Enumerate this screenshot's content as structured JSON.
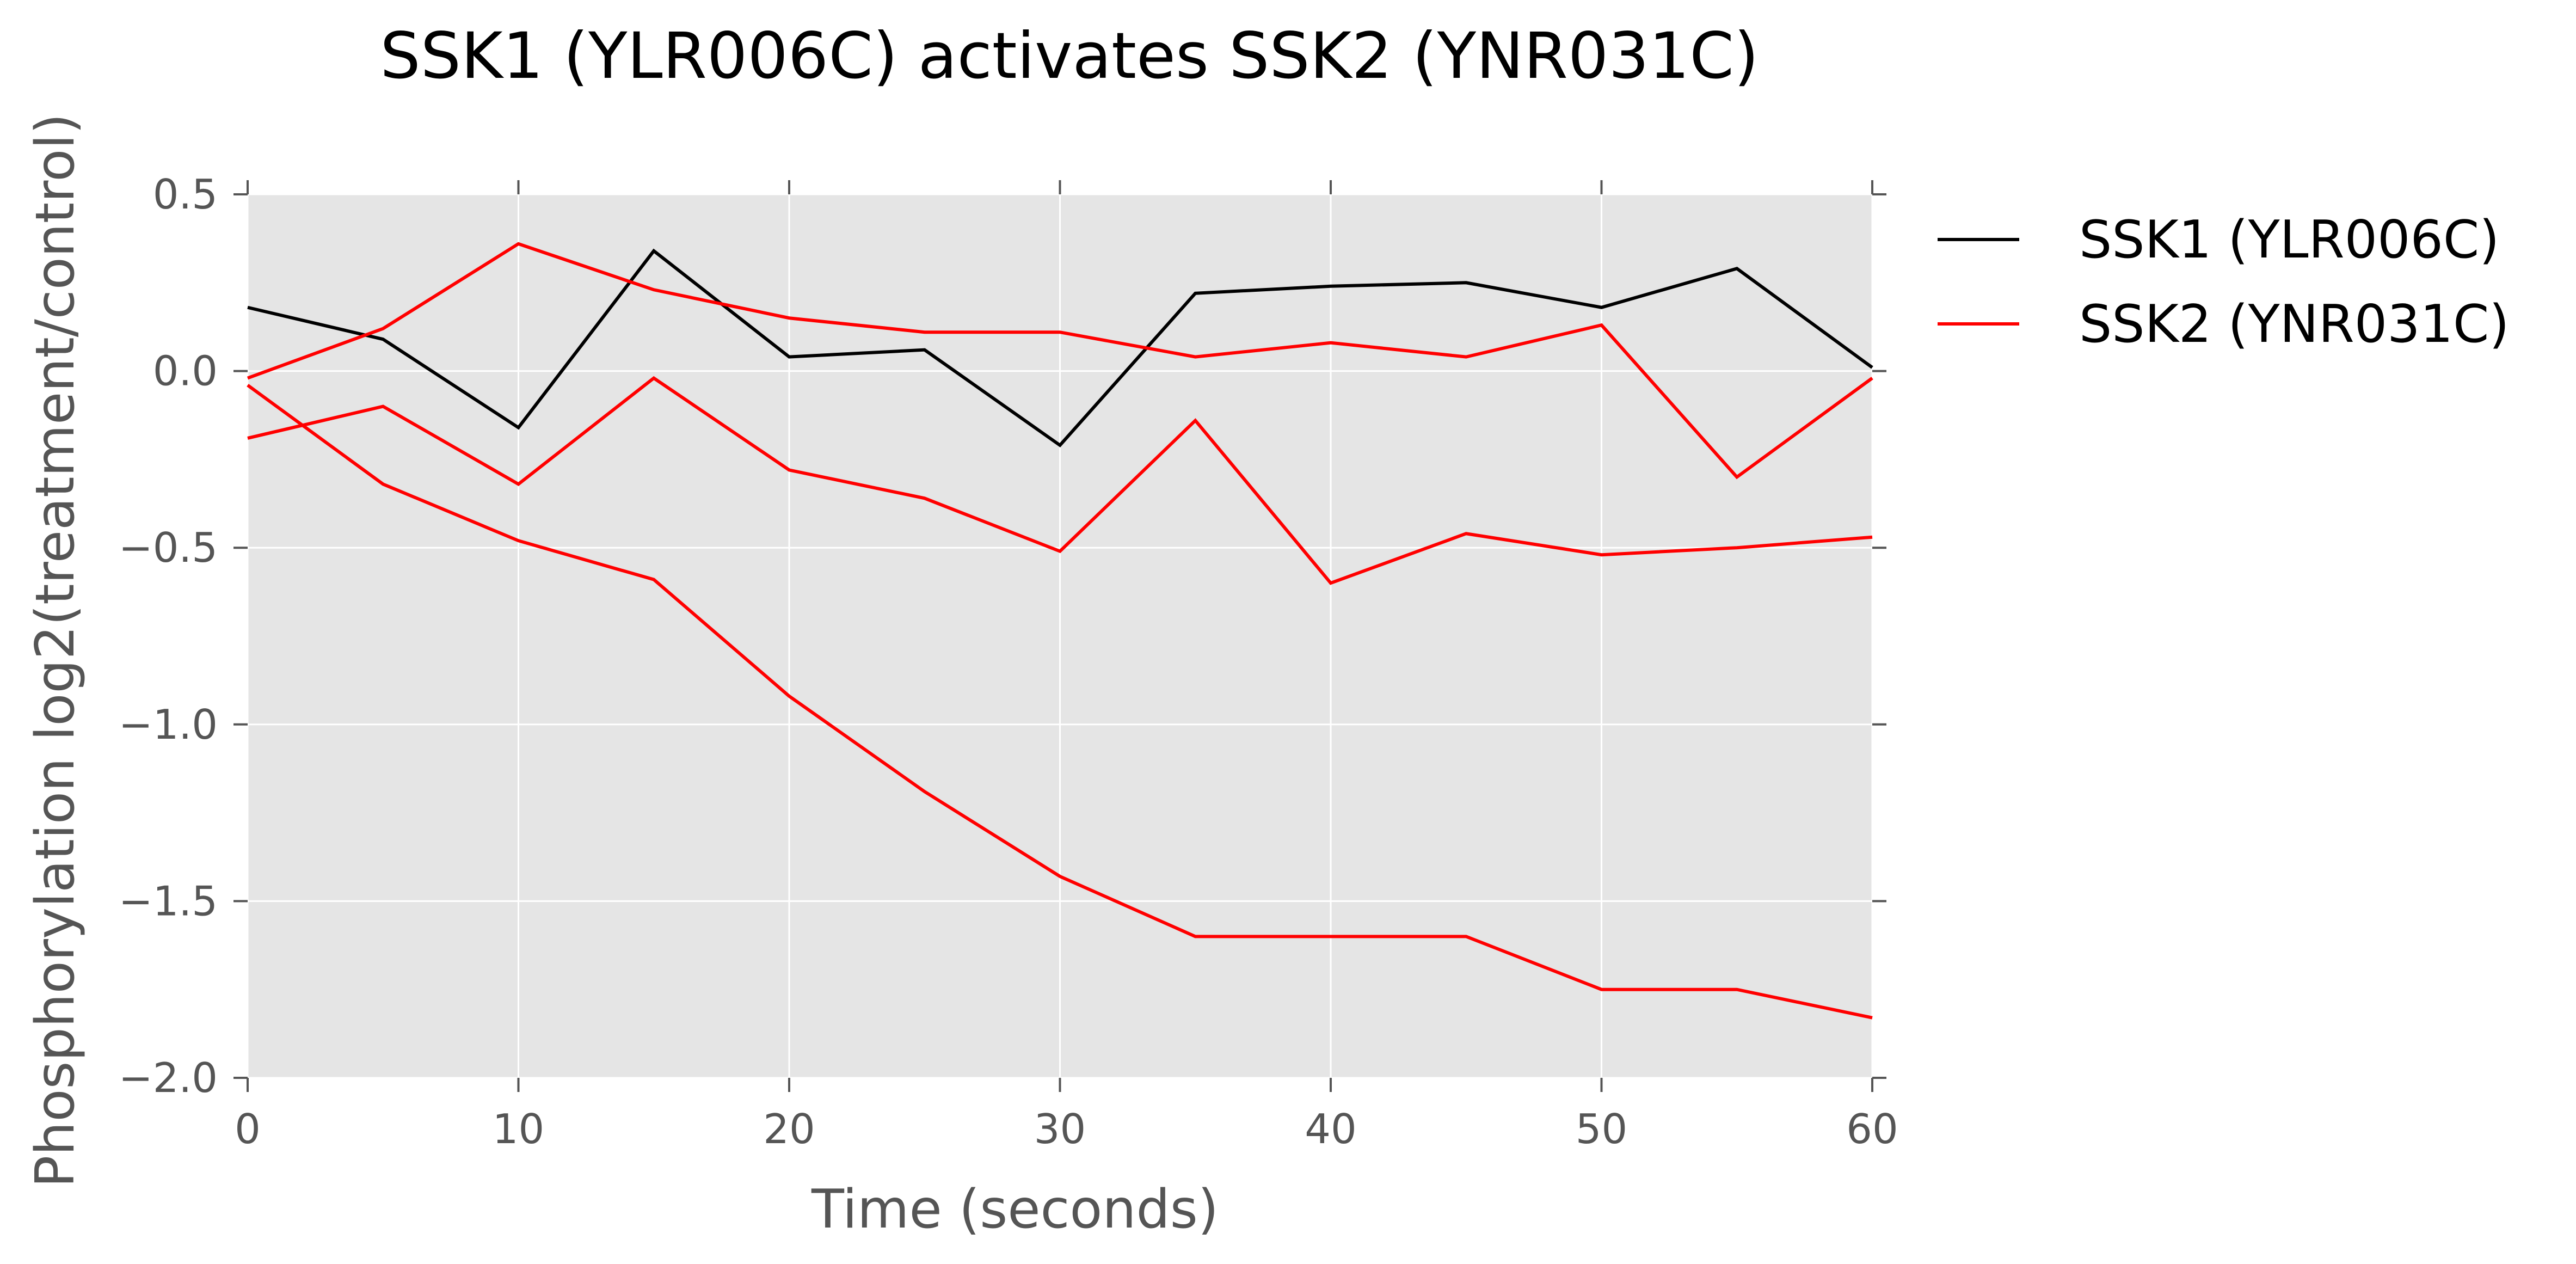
{
  "chart_data": {
    "type": "line",
    "title": "SSK1 (YLR006C) activates SSK2 (YNR031C)",
    "xlabel": "Time (seconds)",
    "ylabel": "Phosphorylation log2(treatment/control)",
    "xlim": [
      0,
      60
    ],
    "ylim": [
      -2.0,
      0.5
    ],
    "x_ticks": [
      0,
      10,
      20,
      30,
      40,
      50,
      60
    ],
    "x_tick_labels": [
      "0",
      "10",
      "20",
      "30",
      "40",
      "50",
      "60"
    ],
    "y_ticks": [
      0.5,
      0.0,
      -0.5,
      -1.0,
      -1.5,
      -2.0
    ],
    "y_tick_labels": [
      "0.5",
      "0.0",
      "−0.5",
      "−1.0",
      "−1.5",
      "−2.0"
    ],
    "grid": true,
    "legend_position": "outside-right-top",
    "x": [
      0,
      5,
      10,
      15,
      20,
      25,
      30,
      35,
      40,
      45,
      50,
      55,
      60
    ],
    "series": [
      {
        "name": "SSK1 (YLR006C)",
        "color": "#000000",
        "show_in_legend": true,
        "values": [
          0.18,
          0.09,
          -0.16,
          0.34,
          0.04,
          0.06,
          -0.21,
          0.22,
          0.24,
          0.25,
          0.18,
          0.29,
          0.01
        ]
      },
      {
        "name": "SSK2 (YNR031C)",
        "color": "#ff0000",
        "show_in_legend": true,
        "values": [
          -0.02,
          0.12,
          0.36,
          0.23,
          0.15,
          0.11,
          0.11,
          0.04,
          0.08,
          0.04,
          0.13,
          -0.3,
          -0.02
        ]
      },
      {
        "name": "SSK2 (YNR031C)",
        "color": "#ff0000",
        "show_in_legend": false,
        "values": [
          -0.19,
          -0.1,
          -0.32,
          -0.02,
          -0.28,
          -0.36,
          -0.51,
          -0.14,
          -0.6,
          -0.46,
          -0.52,
          -0.5,
          -0.47
        ]
      },
      {
        "name": "SSK2 (YNR031C)",
        "color": "#ff0000",
        "show_in_legend": false,
        "values": [
          -0.04,
          -0.32,
          -0.48,
          -0.59,
          -0.92,
          -1.19,
          -1.43,
          -1.6,
          -1.6,
          -1.6,
          -1.75,
          -1.75,
          -1.83
        ]
      }
    ],
    "colors": {
      "plot_background": "#e5e5e5",
      "grid": "#ffffff",
      "tick_text": "#555555"
    }
  }
}
